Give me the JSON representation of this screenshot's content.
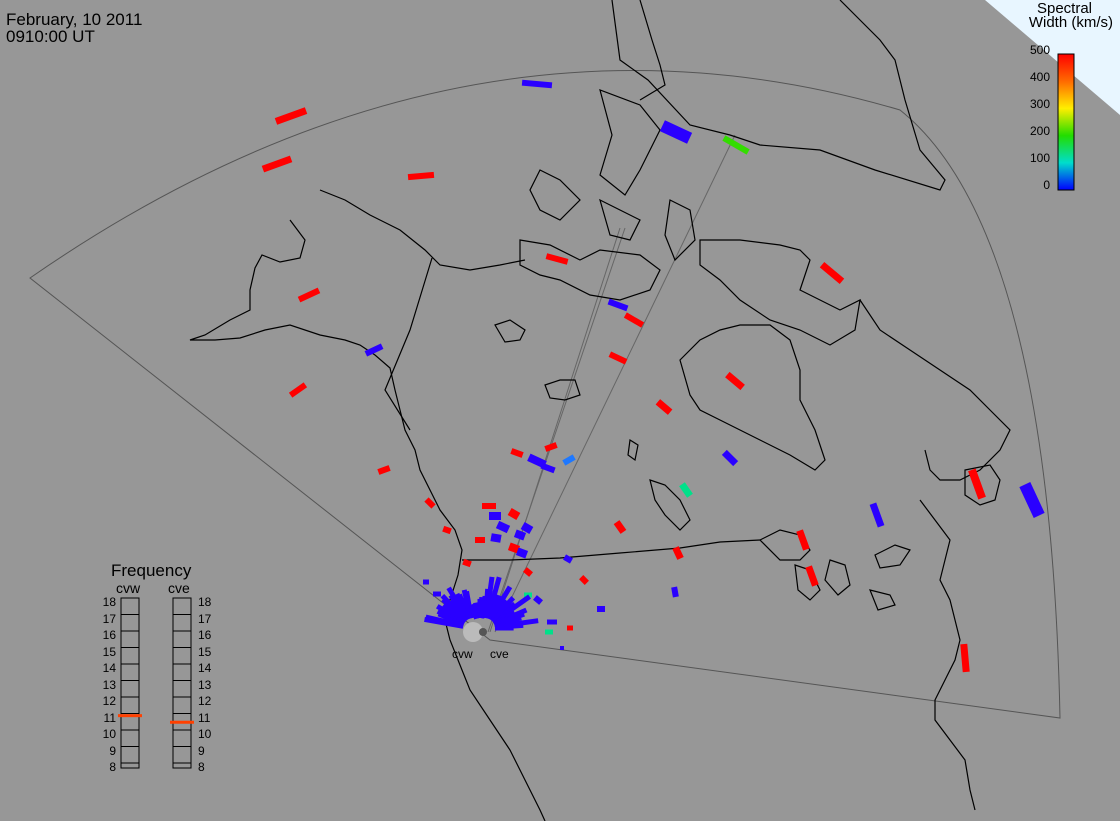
{
  "header": {
    "date": "February, 10 2011",
    "time": "0910:00 UT"
  },
  "legend": {
    "title_line1": "Spectral",
    "title_line2": "Width (km/s)",
    "ticks": [
      "500",
      "400",
      "300",
      "200",
      "100",
      "0"
    ],
    "colors": [
      "#ff0000",
      "#ff7f00",
      "#ffff00",
      "#00ff00",
      "#00ffff",
      "#0000ff"
    ]
  },
  "frequency": {
    "title": "Frequency",
    "col_left": "cvw",
    "col_right": "cve",
    "scale": [
      "18",
      "17",
      "16",
      "15",
      "14",
      "13",
      "12",
      "11",
      "10",
      "9",
      "8"
    ],
    "cvw_value_mhz": 10.9,
    "cve_value_mhz": 10.5,
    "marker_color": "#ff4000"
  },
  "radars": {
    "left": "cvw",
    "right": "cve"
  },
  "colors": {
    "background": "#979797",
    "coast": "#000000",
    "fov": "#555555",
    "high": "#ff0000",
    "low": "#2a00ff",
    "mid": "#00e08a",
    "green": "#33dd00",
    "lightblue": "#1e78ff",
    "legend_bg": "#e8f6ff"
  }
}
